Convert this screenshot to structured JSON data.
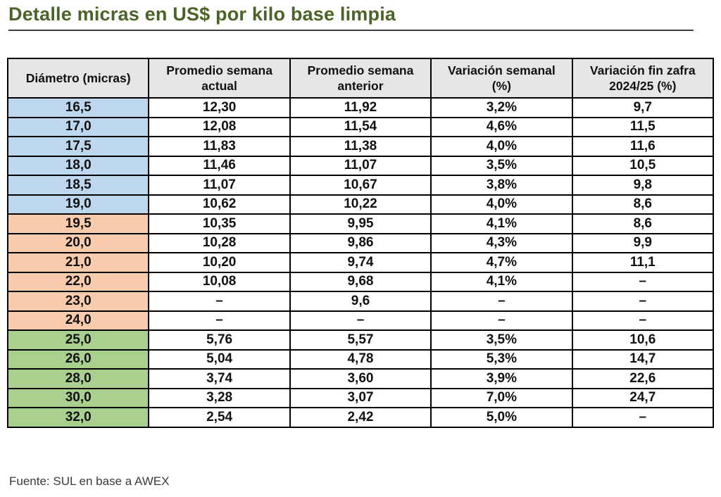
{
  "source_note": "Fuente: SUL en base a AWEX",
  "colors": {
    "title_green": "#4a6428",
    "header_bg": "#e7e6e6",
    "border": "#000000",
    "group_fine_bg": "#bdd7ee",
    "group_medium_bg": "#f8cbad",
    "group_coarse_bg": "#a9d08e"
  },
  "chart_data": {
    "type": "table",
    "title": "Detalle micras en US$ por kilo base limpia",
    "columns": [
      "Diámetro (micras)",
      "Promedio semana\nactual",
      "Promedio semana\nanterior",
      "Variación semanal\n(%)",
      "Variación fin zafra\n2024/25 (%)"
    ],
    "groups": {
      "fine": {
        "bg": "#bdd7ee"
      },
      "medium": {
        "bg": "#f8cbad"
      },
      "coarse": {
        "bg": "#a9d08e"
      }
    },
    "rows": [
      {
        "group": "fine",
        "cells": [
          "16,5",
          "12,30",
          "11,92",
          "3,2%",
          "9,7"
        ]
      },
      {
        "group": "fine",
        "cells": [
          "17,0",
          "12,08",
          "11,54",
          "4,6%",
          "11,5"
        ]
      },
      {
        "group": "fine",
        "cells": [
          "17,5",
          "11,83",
          "11,38",
          "4,0%",
          "11,6"
        ]
      },
      {
        "group": "fine",
        "cells": [
          "18,0",
          "11,46",
          "11,07",
          "3,5%",
          "10,5"
        ]
      },
      {
        "group": "fine",
        "cells": [
          "18,5",
          "11,07",
          "10,67",
          "3,8%",
          "9,8"
        ]
      },
      {
        "group": "fine",
        "cells": [
          "19,0",
          "10,62",
          "10,22",
          "4,0%",
          "8,6"
        ]
      },
      {
        "group": "medium",
        "cells": [
          "19,5",
          "10,35",
          "9,95",
          "4,1%",
          "8,6"
        ]
      },
      {
        "group": "medium",
        "cells": [
          "20,0",
          "10,28",
          "9,86",
          "4,3%",
          "9,9"
        ]
      },
      {
        "group": "medium",
        "cells": [
          "21,0",
          "10,20",
          "9,74",
          "4,7%",
          "11,1"
        ]
      },
      {
        "group": "medium",
        "cells": [
          "22,0",
          "10,08",
          "9,68",
          "4,1%",
          "–"
        ]
      },
      {
        "group": "medium",
        "cells": [
          "23,0",
          "–",
          "9,6",
          "–",
          "–"
        ]
      },
      {
        "group": "medium",
        "cells": [
          "24,0",
          "–",
          "–",
          "–",
          "–"
        ]
      },
      {
        "group": "coarse",
        "cells": [
          "25,0",
          "5,76",
          "5,57",
          "3,5%",
          "10,6"
        ]
      },
      {
        "group": "coarse",
        "cells": [
          "26,0",
          "5,04",
          "4,78",
          "5,3%",
          "14,7"
        ]
      },
      {
        "group": "coarse",
        "cells": [
          "28,0",
          "3,74",
          "3,60",
          "3,9%",
          "22,6"
        ]
      },
      {
        "group": "coarse",
        "cells": [
          "30,0",
          "3,28",
          "3,07",
          "7,0%",
          "24,7"
        ]
      },
      {
        "group": "coarse",
        "cells": [
          "32,0",
          "2,54",
          "2,42",
          "5,0%",
          "–"
        ]
      }
    ]
  }
}
